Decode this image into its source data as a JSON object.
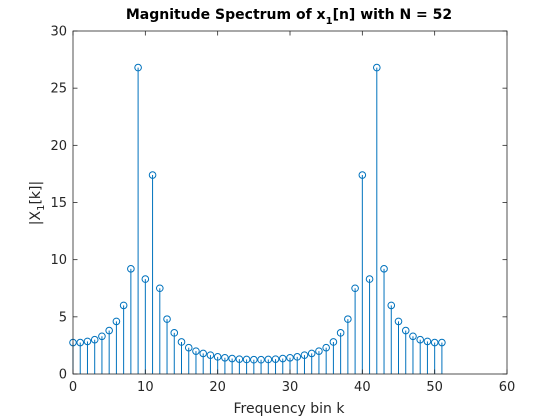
{
  "chart_data": {
    "type": "stem",
    "title": {
      "prefix": "Magnitude Spectrum of x",
      "subscript": "1",
      "suffix": "[n] with N = 52"
    },
    "xlabel": "Frequency bin k",
    "ylabel": {
      "prefix": "|X",
      "subscript": "1",
      "suffix": "[k]|"
    },
    "xlim": [
      0,
      60
    ],
    "ylim": [
      0,
      30
    ],
    "xticks": [
      0,
      10,
      20,
      30,
      40,
      50,
      60
    ],
    "yticks": [
      0,
      5,
      10,
      15,
      20,
      25,
      30
    ],
    "color": "#0072BD",
    "series": [
      {
        "name": "|X1[k]|",
        "x": [
          0,
          1,
          2,
          3,
          4,
          5,
          6,
          7,
          8,
          9,
          10,
          11,
          12,
          13,
          14,
          15,
          16,
          17,
          18,
          19,
          20,
          21,
          22,
          23,
          24,
          25,
          26,
          27,
          28,
          29,
          30,
          31,
          32,
          33,
          34,
          35,
          36,
          37,
          38,
          39,
          40,
          41,
          42,
          43,
          44,
          45,
          46,
          47,
          48,
          49,
          50,
          51
        ],
        "values": [
          2.75,
          2.75,
          2.85,
          3.0,
          3.3,
          3.8,
          4.6,
          6.0,
          9.2,
          26.8,
          8.3,
          17.4,
          7.5,
          4.8,
          3.6,
          2.8,
          2.3,
          2.0,
          1.8,
          1.65,
          1.5,
          1.42,
          1.35,
          1.3,
          1.27,
          1.25,
          1.25,
          1.27,
          1.3,
          1.35,
          1.42,
          1.5,
          1.65,
          1.8,
          2.0,
          2.3,
          2.8,
          3.6,
          4.8,
          7.5,
          17.4,
          8.3,
          26.8,
          9.2,
          6.0,
          4.6,
          3.8,
          3.3,
          3.0,
          2.85,
          2.75,
          2.75
        ]
      }
    ]
  }
}
